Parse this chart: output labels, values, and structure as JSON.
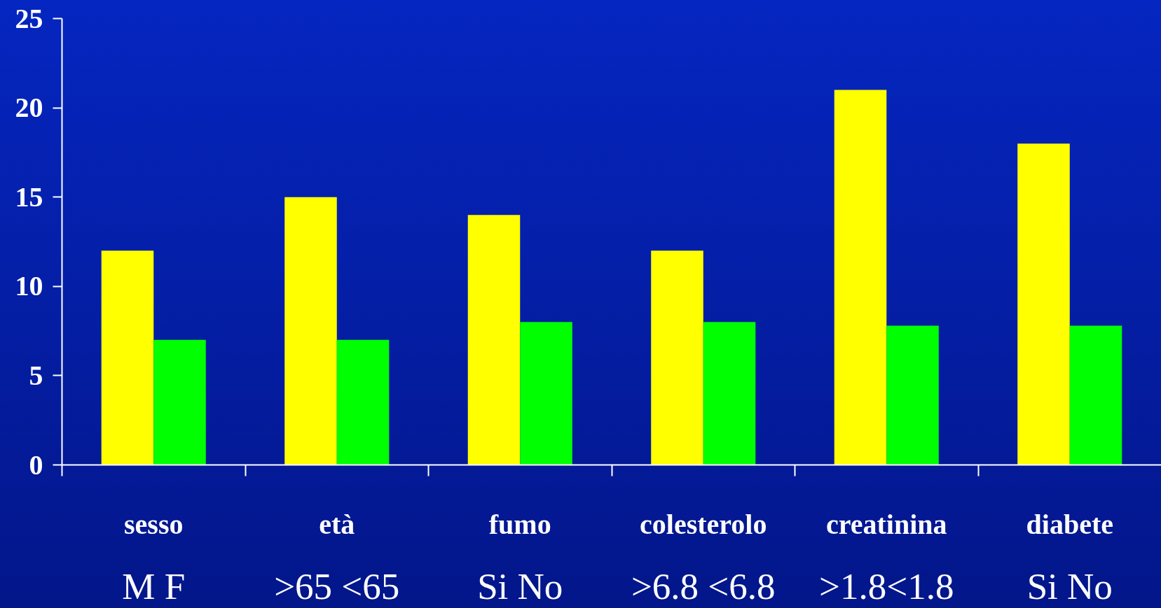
{
  "chart_data": {
    "type": "bar",
    "categories": [
      "sesso",
      "età",
      "fumo",
      "colesterolo",
      "creatinina",
      "diabete"
    ],
    "series": [
      {
        "color": "#ffff00",
        "values": [
          12,
          15,
          14,
          12,
          21,
          18
        ]
      },
      {
        "color": "#00ff00",
        "values": [
          7,
          7,
          8,
          8,
          7.8,
          7.8
        ]
      }
    ],
    "ylim": [
      0,
      25
    ],
    "yticks": [
      0,
      5,
      10,
      15,
      20,
      25
    ],
    "annotations": [
      "M F",
      ">65 <65",
      "Si No",
      ">6.8 <6.8",
      ">1.8<1.8",
      "Si No"
    ]
  }
}
